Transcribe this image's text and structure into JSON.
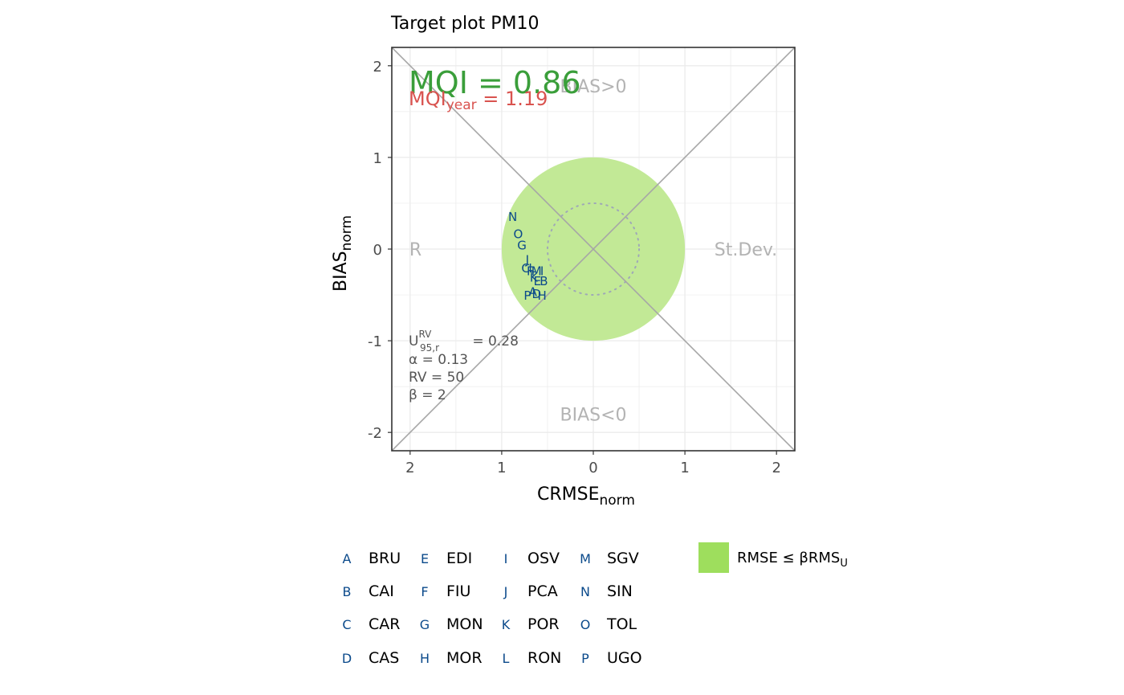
{
  "chart_data": {
    "type": "scatter",
    "title": "Target plot PM10",
    "xlabel": {
      "main": "CRMSE",
      "sub": "norm"
    },
    "ylabel": {
      "main": "BIAS",
      "sub": "norm"
    },
    "xlim": [
      -2.2,
      2.2
    ],
    "ylim": [
      -2.2,
      2.2
    ],
    "x_ticks": [
      -2,
      -1,
      0,
      1,
      2
    ],
    "x_tick_labels": [
      "2",
      "1",
      "0",
      "1",
      "2"
    ],
    "y_ticks": [
      -2,
      -1,
      0,
      1,
      2
    ],
    "y_tick_labels": [
      "-2",
      "-1",
      "0",
      "1",
      "2"
    ],
    "grid": true,
    "quadrant_labels": {
      "top": "BIAS>0",
      "bottom": "BIAS<0",
      "left": "R",
      "right": "St.Dev."
    },
    "target_circle_radius": 1,
    "inner_circle_radius": 0.5,
    "mqi_text": "MQI = 0.86",
    "mqi_year": {
      "prefix": "MQI",
      "sub": "year",
      "rest": " = 1.19"
    },
    "params": {
      "u95": {
        "main": "U",
        "sub": "95,r",
        "sup": "RV",
        "rest": " = 0.28"
      },
      "lines": [
        "α = 0.13",
        "RV = 50",
        "β = 2"
      ]
    },
    "points": [
      {
        "label": "N",
        "x": -0.88,
        "y": 0.35
      },
      {
        "label": "O",
        "x": -0.82,
        "y": 0.16
      },
      {
        "label": "G",
        "x": -0.78,
        "y": 0.04
      },
      {
        "label": "J",
        "x": -0.72,
        "y": -0.12
      },
      {
        "label": "C",
        "x": -0.74,
        "y": -0.21
      },
      {
        "label": "L",
        "x": -0.67,
        "y": -0.21
      },
      {
        "label": "F",
        "x": -0.69,
        "y": -0.24
      },
      {
        "label": "M",
        "x": -0.62,
        "y": -0.24
      },
      {
        "label": "I",
        "x": -0.56,
        "y": -0.24
      },
      {
        "label": "K",
        "x": -0.65,
        "y": -0.31
      },
      {
        "label": "E",
        "x": -0.61,
        "y": -0.35
      },
      {
        "label": "B",
        "x": -0.54,
        "y": -0.35
      },
      {
        "label": "A",
        "x": -0.66,
        "y": -0.47
      },
      {
        "label": "D",
        "x": -0.62,
        "y": -0.49
      },
      {
        "label": "P",
        "x": -0.72,
        "y": -0.51
      },
      {
        "label": "H",
        "x": -0.56,
        "y": -0.51
      }
    ],
    "legend": {
      "stations": [
        {
          "code": "A",
          "name": "BRU"
        },
        {
          "code": "B",
          "name": "CAI"
        },
        {
          "code": "C",
          "name": "CAR"
        },
        {
          "code": "D",
          "name": "CAS"
        },
        {
          "code": "E",
          "name": "EDI"
        },
        {
          "code": "F",
          "name": "FIU"
        },
        {
          "code": "G",
          "name": "MON"
        },
        {
          "code": "H",
          "name": "MOR"
        },
        {
          "code": "I",
          "name": "OSV"
        },
        {
          "code": "J",
          "name": "PCA"
        },
        {
          "code": "K",
          "name": "POR"
        },
        {
          "code": "L",
          "name": "RON"
        },
        {
          "code": "M",
          "name": "SGV"
        },
        {
          "code": "N",
          "name": "SIN"
        },
        {
          "code": "O",
          "name": "TOL"
        },
        {
          "code": "P",
          "name": "UGO"
        }
      ],
      "fill_item": {
        "main": "RMSE ≤ βRMS",
        "sub": "U"
      }
    },
    "colors": {
      "point": "#0b4a8b",
      "circle_fill": "#c2e996",
      "legend_fill": "#9ede5d",
      "mqi": "#3a9e3a",
      "mqi_year": "#d9534f",
      "quadrant_text": "#b3b3b3",
      "diagonal": "#a6a6a6",
      "params_text": "#555555",
      "inner_circle": "#9fa8b7"
    }
  }
}
